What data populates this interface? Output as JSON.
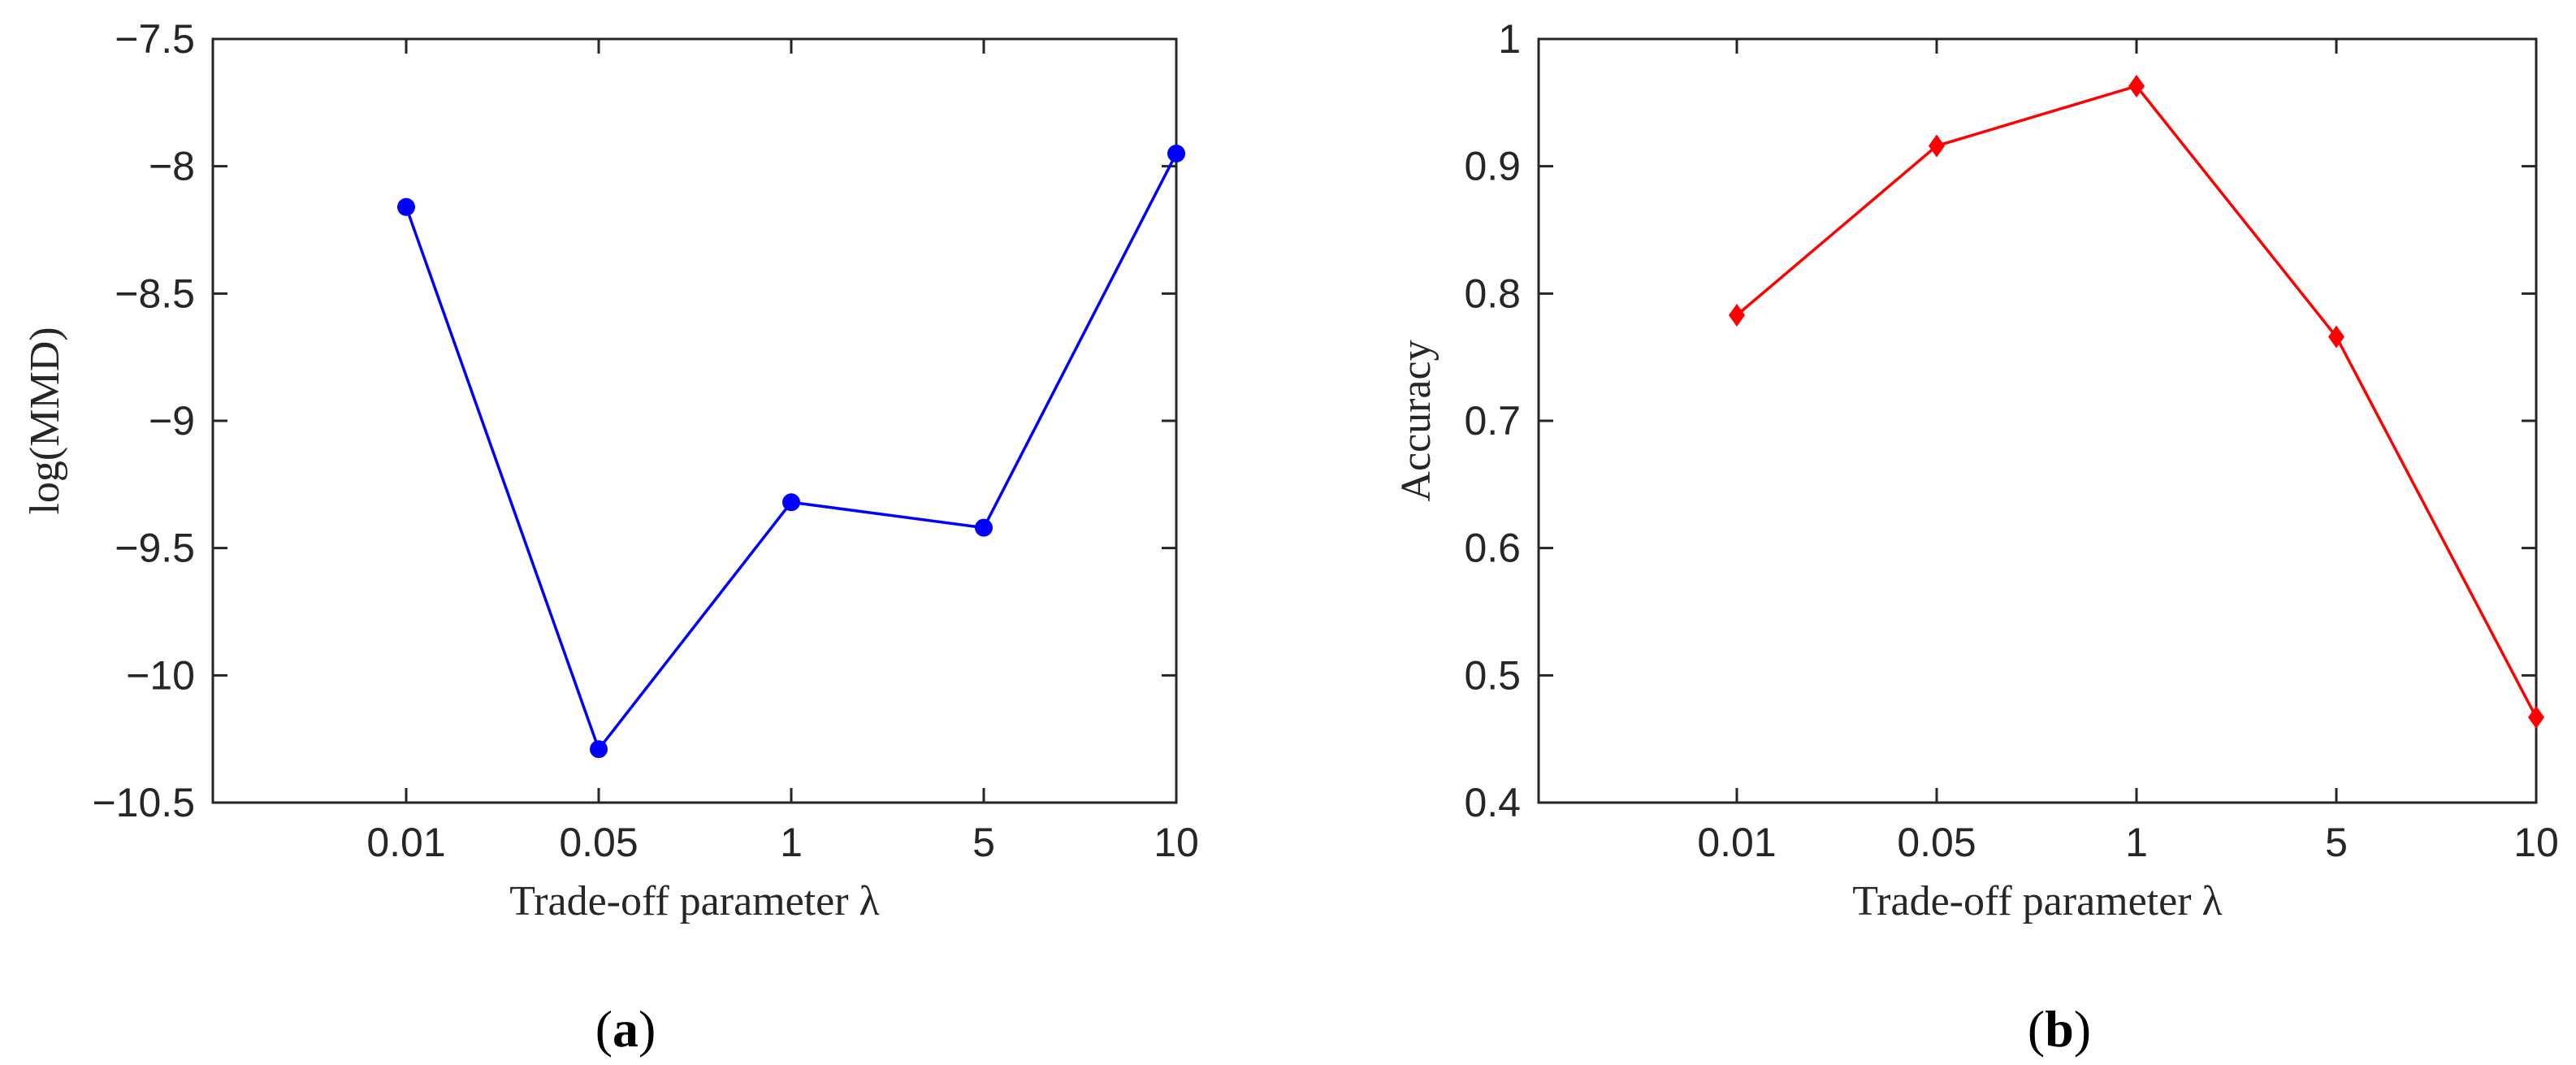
{
  "colors": {
    "axis": "#262626",
    "series_a": "#0000ff",
    "series_b": "#ff0000"
  },
  "chart_data": [
    {
      "type": "line",
      "panel_label": "a",
      "xlabel": "Trade-off parameter λ",
      "ylabel": "log(MMD)",
      "categories": [
        "0.01",
        "0.05",
        "1",
        "5",
        "10"
      ],
      "values": [
        -8.16,
        -10.29,
        -9.32,
        -9.42,
        -7.95
      ],
      "ylim": [
        -10.5,
        -7.5
      ],
      "yticks": [
        "−10.5",
        "−10",
        "−9.5",
        "−9",
        "−8.5",
        "−8",
        "−7.5"
      ],
      "marker": "circle",
      "color": "#0000ff",
      "grid": false,
      "legend": "none"
    },
    {
      "type": "line",
      "panel_label": "b",
      "xlabel": "Trade-off parameter λ",
      "ylabel": "Accuracy",
      "categories": [
        "0.01",
        "0.05",
        "1",
        "5",
        "10"
      ],
      "values": [
        0.783,
        0.916,
        0.963,
        0.766,
        0.467
      ],
      "ylim": [
        0.4,
        1
      ],
      "yticks": [
        "0.4",
        "0.5",
        "0.6",
        "0.7",
        "0.8",
        "0.9",
        "1"
      ],
      "marker": "diamond",
      "color": "#ff0000",
      "grid": false,
      "legend": "none"
    }
  ]
}
